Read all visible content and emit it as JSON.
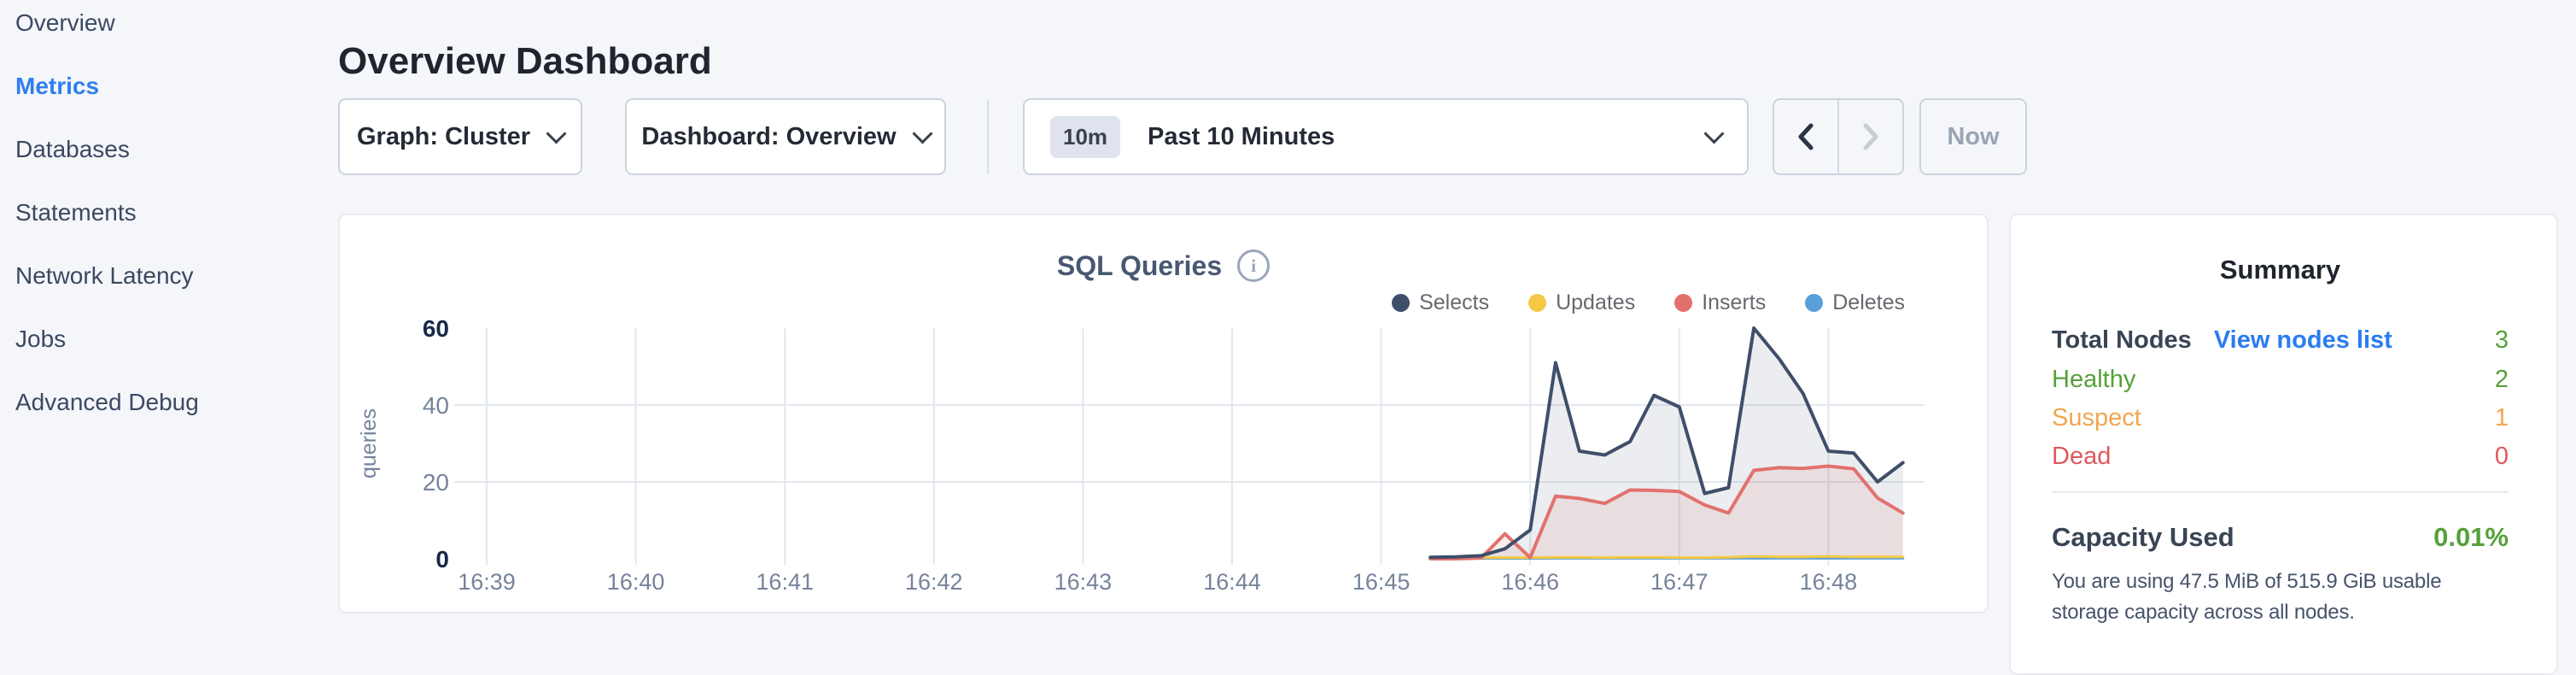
{
  "sidebar": {
    "items": [
      {
        "label": "Overview",
        "active": false
      },
      {
        "label": "Metrics",
        "active": true
      },
      {
        "label": "Databases",
        "active": false
      },
      {
        "label": "Statements",
        "active": false
      },
      {
        "label": "Network Latency",
        "active": false
      },
      {
        "label": "Jobs",
        "active": false
      },
      {
        "label": "Advanced Debug",
        "active": false
      }
    ]
  },
  "header": {
    "title": "Overview Dashboard"
  },
  "controls": {
    "graph_dropdown": "Graph: Cluster",
    "dashboard_dropdown": "Dashboard: Overview",
    "time_badge": "10m",
    "time_label": "Past 10 Minutes",
    "prev_enabled": true,
    "next_enabled": false,
    "now_label": "Now"
  },
  "icons": {
    "dropdown_chevron": "chevron-down",
    "time_chevron": "chevron-down",
    "prev": "chevron-left",
    "next": "chevron-right",
    "chart_info": "info-circle"
  },
  "chart": {
    "title": "SQL Queries"
  },
  "chart_data": {
    "type": "area",
    "title": "SQL Queries",
    "xlabel": "",
    "ylabel": "queries",
    "ylim": [
      0,
      60
    ],
    "yticks": [
      0,
      20,
      40,
      60
    ],
    "grid": true,
    "legend_position": "top-right",
    "x_axis": {
      "tick_labels": [
        "16:39",
        "16:40",
        "16:41",
        "16:42",
        "16:43",
        "16:44",
        "16:45",
        "16:46",
        "16:47",
        "16:48"
      ],
      "tick_minutes": [
        39,
        40,
        41,
        42,
        43,
        44,
        45,
        46,
        47,
        48
      ],
      "domain_minutes": [
        38.75,
        48.65
      ]
    },
    "x": [
      45.33,
      45.5,
      45.67,
      45.83,
      46.0,
      46.17,
      46.33,
      46.5,
      46.67,
      46.83,
      47.0,
      47.17,
      47.33,
      47.5,
      47.67,
      47.83,
      48.0,
      48.17,
      48.33,
      48.5
    ],
    "series": [
      {
        "name": "Selects",
        "color": "#3f4e6a",
        "fill": "rgba(63,78,106,0.10)",
        "line_width": 4,
        "values": [
          0.4,
          0.5,
          0.8,
          2.6,
          7.5,
          51,
          28,
          27,
          30.5,
          42.5,
          39.5,
          17,
          18.5,
          60,
          52,
          43,
          28,
          27.5,
          20,
          25
        ]
      },
      {
        "name": "Updates",
        "color": "#f5c944",
        "line_width": 3,
        "values": [
          0.3,
          0.3,
          0.3,
          0.3,
          0.3,
          0.4,
          0.4,
          0.3,
          0.4,
          0.4,
          0.3,
          0.3,
          0.4,
          0.6,
          0.5,
          0.5,
          0.6,
          0.5,
          0.5,
          0.5
        ]
      },
      {
        "name": "Inserts",
        "color": "#e2716e",
        "fill": "rgba(226,113,110,0.12)",
        "line_width": 4,
        "values": [
          0,
          0,
          0.2,
          6.5,
          0.3,
          16.3,
          15.7,
          14.4,
          17.9,
          17.8,
          17.5,
          14,
          11.9,
          23,
          23.7,
          23.5,
          24.1,
          23.4,
          15.8,
          11.9
        ]
      },
      {
        "name": "Deletes",
        "color": "#599fd9",
        "line_width": 3,
        "values": [
          0.1,
          0.1,
          0.1,
          0.1,
          0.1,
          0.15,
          0.15,
          0.15,
          0.15,
          0.15,
          0.15,
          0.15,
          0.15,
          0.15,
          0.15,
          0.15,
          0.15,
          0.15,
          0.15,
          0.15
        ]
      }
    ],
    "z_order": [
      "Deletes",
      "Updates",
      "Inserts",
      "Selects"
    ],
    "axis_colors": {
      "strong_tick": "#17294a",
      "soft_tick": "#76839b",
      "gridline": "#e3e8ef"
    }
  },
  "summary": {
    "title": "Summary",
    "total_nodes": {
      "label": "Total Nodes",
      "link": "View nodes list",
      "value": "3",
      "value_color": "#55a139",
      "link_color": "#2b7cf0"
    },
    "statuses": [
      {
        "label": "Healthy",
        "value": "2",
        "color": "#55a139"
      },
      {
        "label": "Suspect",
        "value": "1",
        "color": "#f0a64f"
      },
      {
        "label": "Dead",
        "value": "0",
        "color": "#e0575e"
      }
    ],
    "capacity": {
      "label": "Capacity Used",
      "value": "0.01%",
      "value_color": "#55a139",
      "description": "You are using 47.5 MiB of 515.9 GiB usable storage capacity across all nodes."
    }
  }
}
